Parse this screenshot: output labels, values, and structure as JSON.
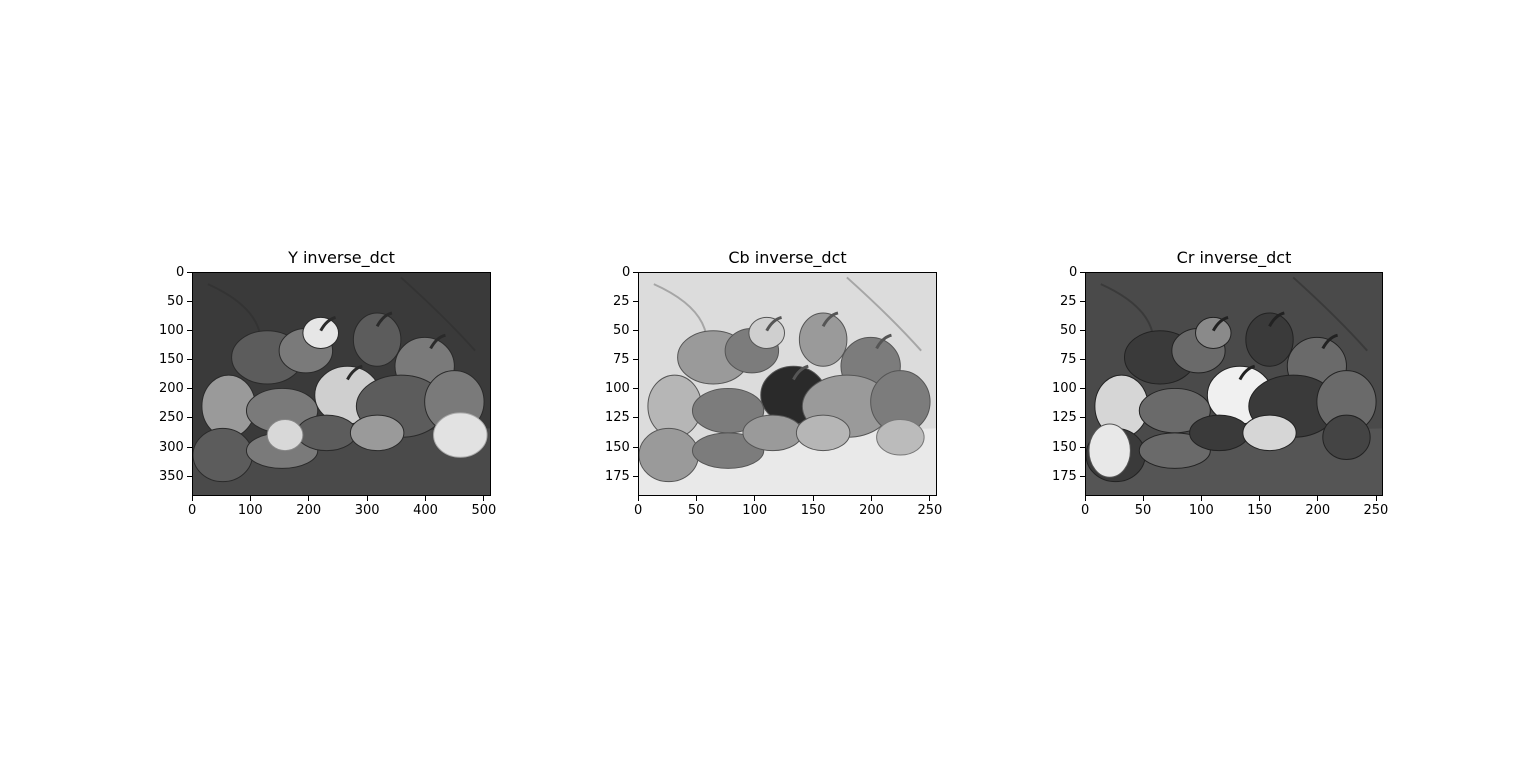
{
  "figure": {
    "panels": [
      {
        "title": "Y inverse_dct",
        "xlim": [
          0,
          512
        ],
        "ylim": [
          384,
          0
        ],
        "xticks": [
          0,
          100,
          200,
          300,
          400,
          500
        ],
        "yticks": [
          0,
          50,
          100,
          150,
          200,
          250,
          300,
          350
        ],
        "tone": "normal"
      },
      {
        "title": "Cb inverse_dct",
        "xlim": [
          0,
          256
        ],
        "ylim": [
          192,
          0
        ],
        "xticks": [
          0,
          50,
          100,
          150,
          200,
          250
        ],
        "yticks": [
          0,
          25,
          50,
          75,
          100,
          125,
          150,
          175
        ],
        "tone": "cb"
      },
      {
        "title": "Cr inverse_dct",
        "xlim": [
          0,
          256
        ],
        "ylim": [
          192,
          0
        ],
        "xticks": [
          0,
          50,
          100,
          150,
          200,
          250
        ],
        "yticks": [
          0,
          25,
          50,
          75,
          100,
          125,
          150,
          175
        ],
        "tone": "cr"
      }
    ]
  }
}
